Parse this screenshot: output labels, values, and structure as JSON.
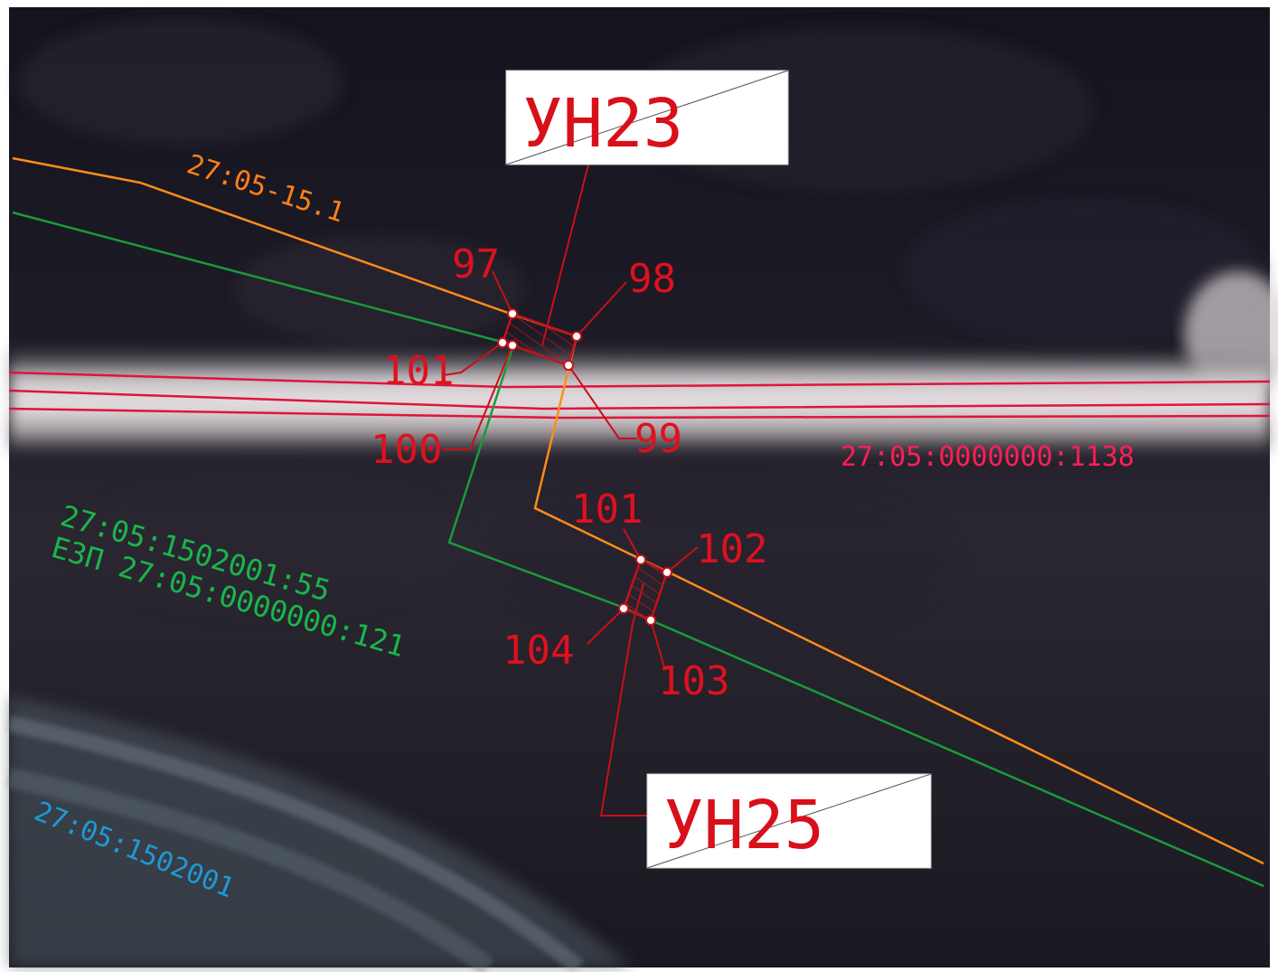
{
  "map": {
    "labels": {
      "parcel_orange": "27:05-15.1",
      "parcel_road": "27:05:0000000:1138",
      "parcel_green_1": "27:05:1502001:55",
      "parcel_green_2": "ЕЗП 27:05:0000000:121",
      "block_blue": "27:05:1502001",
      "site_top": "УН23",
      "site_bottom": "УН25"
    },
    "points": {
      "p97": "97",
      "p98": "98",
      "p99": "99",
      "p100": "100",
      "p101a": "101",
      "p101b": "101",
      "p102": "102",
      "p103": "103",
      "p104": "104"
    },
    "colors": {
      "orange_line": "#ff8c1a",
      "green_line": "#1a9a3c",
      "road_line": "#e0143c",
      "marker": "#c81018",
      "blue_text": "#1e9ad6"
    }
  }
}
